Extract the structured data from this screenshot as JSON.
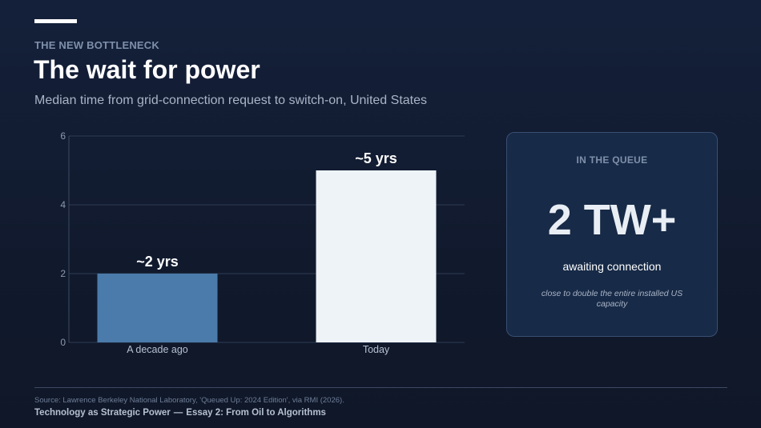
{
  "header": {
    "eyebrow": "THE NEW BOTTLENECK",
    "title": "The wait for power",
    "subtitle": "Median time from grid-connection request to switch-on, United States"
  },
  "chart_data": {
    "type": "bar",
    "categories": [
      "A decade ago",
      "Today"
    ],
    "values": [
      2,
      5
    ],
    "data_labels": [
      "~2 yrs",
      "~5 yrs"
    ],
    "title": "",
    "xlabel": "",
    "ylabel": "",
    "ylim": [
      0,
      6
    ],
    "yticks": [
      "0",
      "2",
      "4",
      "6"
    ],
    "grid": true,
    "bar_colors": [
      "#4a7bab",
      "#eef3f8"
    ]
  },
  "callout": {
    "label": "IN THE QUEUE",
    "value": "2 TW+",
    "caption": "awaiting connection",
    "note": "close to double the entire installed US capacity"
  },
  "footer": {
    "source": "Source: Lawrence Berkeley National Laboratory, 'Queued Up: 2024 Edition', via RMI (2026).",
    "series": "Technology as Strategic Power",
    "separator": "—",
    "essay": "Essay 2: From Oil to Algorithms"
  },
  "colors": {
    "background": "#111a2c",
    "grid": "#2e3b53",
    "axis_text": "#8d9ab0",
    "callout_bg": "#172a47"
  }
}
